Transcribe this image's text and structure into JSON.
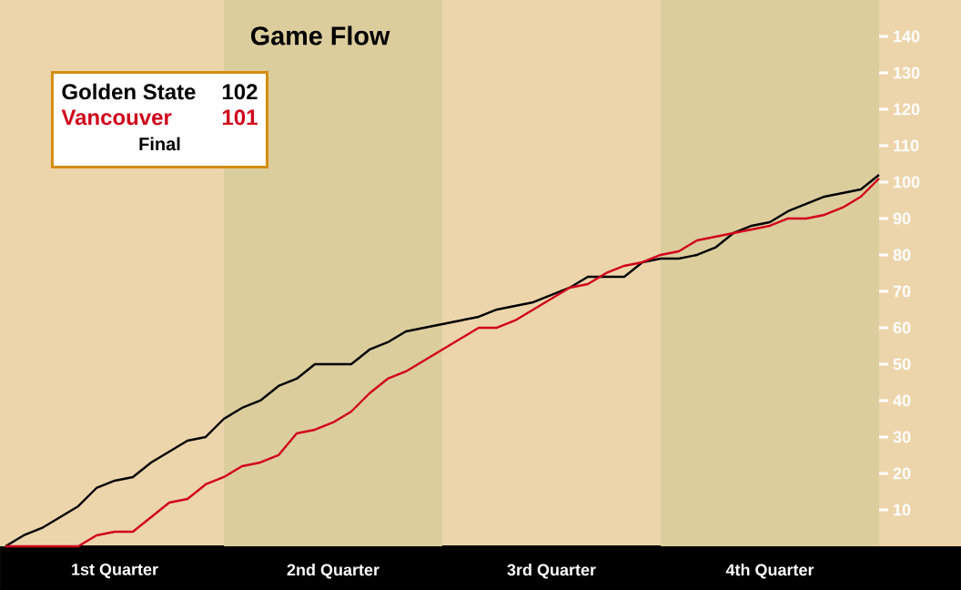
{
  "chart_data": {
    "type": "line",
    "title": "Game Flow",
    "categories": [
      null,
      null,
      null,
      null,
      null,
      null,
      "1st Quarter",
      null,
      null,
      null,
      null,
      null,
      null,
      null,
      null,
      null,
      null,
      null,
      "2nd Quarter",
      null,
      null,
      null,
      null,
      null,
      null,
      null,
      null,
      null,
      null,
      null,
      "3rd Quarter",
      null,
      null,
      null,
      null,
      null,
      null,
      null,
      null,
      null,
      null,
      null,
      "4th Quarter",
      null,
      null,
      null,
      null,
      null,
      null
    ],
    "ylim": [
      0,
      150
    ],
    "yticks": [
      10,
      20,
      30,
      40,
      50,
      60,
      70,
      80,
      90,
      100,
      110,
      120,
      130,
      140
    ],
    "series": [
      {
        "name": "Golden State",
        "color": "#000000",
        "values": [
          0,
          3,
          5,
          8,
          11,
          16,
          18,
          19,
          23,
          26,
          29,
          30,
          35,
          38,
          40,
          44,
          46,
          50,
          50,
          50,
          54,
          56,
          59,
          60,
          61,
          62,
          63,
          65,
          66,
          67,
          69,
          71,
          74,
          74,
          74,
          78,
          79,
          79,
          80,
          82,
          86,
          88,
          89,
          92,
          94,
          96,
          97,
          98,
          102
        ]
      },
      {
        "name": "Vancouver",
        "color": "#d0021b",
        "values": [
          0,
          0,
          0,
          0,
          0,
          3,
          4,
          4,
          8,
          12,
          13,
          17,
          19,
          22,
          23,
          25,
          31,
          32,
          34,
          37,
          42,
          46,
          48,
          51,
          54,
          57,
          60,
          60,
          62,
          65,
          68,
          71,
          72,
          75,
          77,
          78,
          80,
          81,
          84,
          85,
          86,
          87,
          88,
          90,
          90,
          91,
          93,
          96,
          101
        ]
      }
    ],
    "legend": "top left",
    "annotations": [
      "102",
      "101",
      "Final"
    ]
  }
}
